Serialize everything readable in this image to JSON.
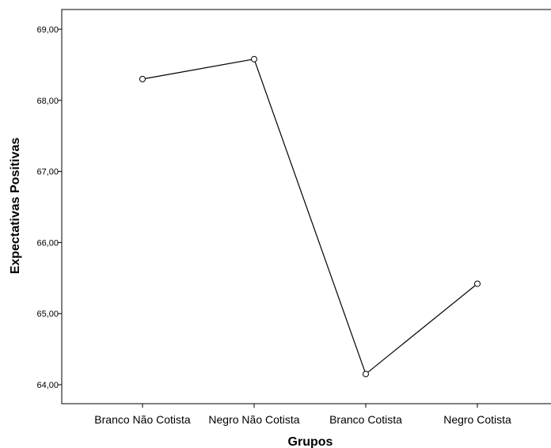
{
  "chart_data": {
    "type": "line",
    "categories": [
      "Branco Não Cotista",
      "Negro Não Cotista",
      "Branco Cotista",
      "Negro Cotista"
    ],
    "values": [
      68.3,
      68.58,
      64.15,
      65.42
    ],
    "xlabel": "Grupos",
    "ylabel": "Expectativas Positivas",
    "ylim": [
      64.0,
      69.0
    ],
    "yticks": [
      "64,00",
      "65,00",
      "66,00",
      "67,00",
      "68,00",
      "69,00"
    ],
    "ytick_values": [
      64,
      65,
      66,
      67,
      68,
      69
    ],
    "grid": false,
    "marker": "open-circle",
    "line_color": "#000000"
  }
}
